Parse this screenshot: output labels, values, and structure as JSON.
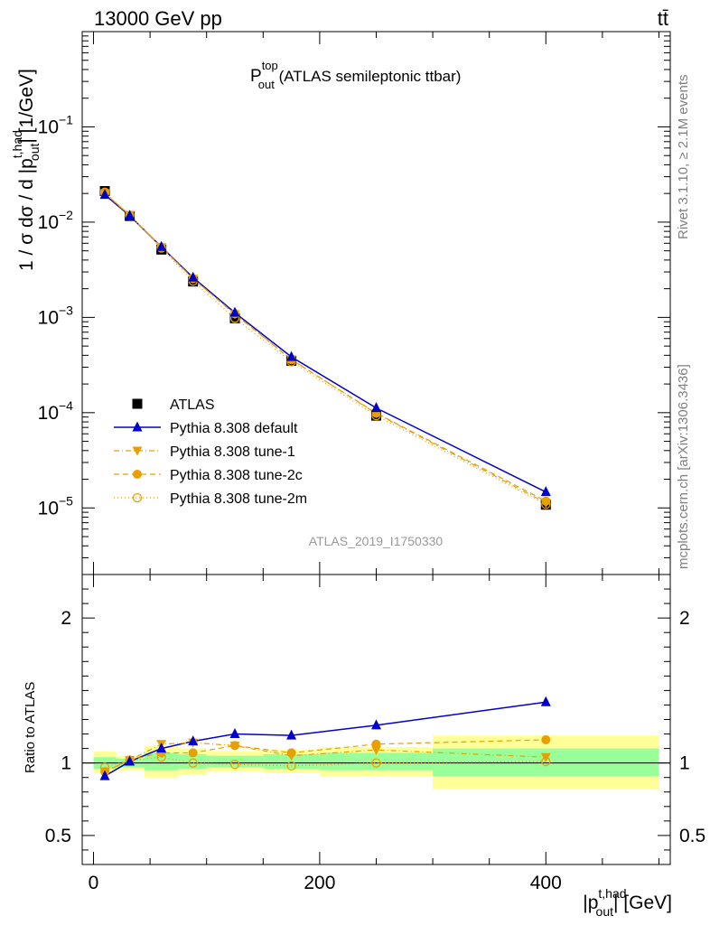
{
  "header": {
    "left": "13000 GeV pp",
    "right": "tt̄"
  },
  "side_labels": {
    "rivet": "Rivet 3.1.10, ≥ 2.1M events",
    "mcplots": "mcplots.cern.ch [arXiv:1306.3436]"
  },
  "analysis_id": "ATLAS_2019_I1750330",
  "plot_title": {
    "main": "P",
    "sup": "top",
    "sub": "out",
    "rest": " (ATLAS semileptonic ttbar)"
  },
  "axes": {
    "ylabel_main": {
      "pre": "1 / σ dσ / d |p",
      "sup": "t,had",
      "sub": "out",
      "post": "| [1/GeV]"
    },
    "ylabel_ratio": "Ratio to ATLAS",
    "xlabel": {
      "pre": "|p",
      "sup": "t,had",
      "sub": "out",
      "post": "| [GeV]"
    }
  },
  "colors": {
    "data": "#000000",
    "default": "#0000cc",
    "tunes": "#e8a000",
    "band_inner": "#99ff99",
    "band_outer": "#ffff99"
  },
  "chart_data": [
    {
      "type": "scatter",
      "panel": "main",
      "ylog": true,
      "xlim": [
        -10,
        510
      ],
      "ylim": [
        2e-06,
        1
      ],
      "x_ticks": [
        0,
        200,
        400
      ],
      "y_ticks": [
        {
          "value": 0.1,
          "base": "10",
          "exp": "−1"
        },
        {
          "value": 0.01,
          "base": "10",
          "exp": "−2"
        },
        {
          "value": 0.001,
          "base": "10",
          "exp": "−3"
        },
        {
          "value": 0.0001,
          "base": "10",
          "exp": "−4"
        },
        {
          "value": 1e-05,
          "base": "10",
          "exp": "−5"
        }
      ],
      "x": [
        10,
        32,
        60,
        88,
        125,
        175,
        250,
        400
      ],
      "series": [
        {
          "name": "ATLAS",
          "style": "data",
          "values": [
            0.0212,
            0.0116,
            0.00515,
            0.00238,
            0.00098,
            0.00035,
            9.3e-05,
            1.08e-05
          ]
        },
        {
          "name": "Pythia 8.308 default",
          "style": "default",
          "values": [
            0.0194,
            0.0117,
            0.0055,
            0.00262,
            0.00112,
            0.000385,
            0.000112,
            1.47e-05
          ]
        },
        {
          "name": "Pythia 8.308 tune-1",
          "style": "tune1",
          "values": [
            0.0201,
            0.0119,
            0.00545,
            0.00255,
            0.00108,
            0.000362,
            9.8e-05,
            1.13e-05
          ]
        },
        {
          "name": "Pythia 8.308 tune-2c",
          "style": "tune2c",
          "values": [
            0.0201,
            0.0118,
            0.0055,
            0.00255,
            0.00109,
            0.00036,
            9.9e-05,
            1.18e-05
          ]
        },
        {
          "name": "Pythia 8.308 tune-2m",
          "style": "tune2m",
          "values": [
            0.0206,
            0.0118,
            0.00535,
            0.0024,
            0.00098,
            0.000342,
            9.3e-05,
            1.09e-05
          ]
        }
      ]
    },
    {
      "type": "scatter",
      "panel": "ratio",
      "xlim": [
        -10,
        510
      ],
      "ylim": [
        0.3,
        2.3
      ],
      "x_ticks": [
        0,
        200,
        400
      ],
      "y_ticks": [
        0.5,
        1,
        2
      ],
      "reference_line": 1,
      "bands": [
        {
          "x0": 0,
          "x1": 20,
          "inner": [
            0.96,
            1.04
          ],
          "outer": [
            0.93,
            1.08
          ]
        },
        {
          "x0": 20,
          "x1": 45,
          "inner": [
            0.97,
            1.03
          ],
          "outer": [
            0.95,
            1.05
          ]
        },
        {
          "x0": 45,
          "x1": 75,
          "inner": [
            0.95,
            1.07
          ],
          "outer": [
            0.9,
            1.12
          ]
        },
        {
          "x0": 75,
          "x1": 100,
          "inner": [
            0.96,
            1.06
          ],
          "outer": [
            0.92,
            1.1
          ]
        },
        {
          "x0": 100,
          "x1": 150,
          "inner": [
            0.97,
            1.05
          ],
          "outer": [
            0.94,
            1.08
          ]
        },
        {
          "x0": 150,
          "x1": 200,
          "inner": [
            0.96,
            1.06
          ],
          "outer": [
            0.93,
            1.09
          ]
        },
        {
          "x0": 200,
          "x1": 300,
          "inner": [
            0.95,
            1.07
          ],
          "outer": [
            0.91,
            1.11
          ]
        },
        {
          "x0": 300,
          "x1": 500,
          "inner": [
            0.91,
            1.1
          ],
          "outer": [
            0.82,
            1.19
          ]
        }
      ],
      "x": [
        10,
        32,
        60,
        88,
        125,
        175,
        250,
        400
      ],
      "series": [
        {
          "name": "Pythia 8.308 default",
          "style": "default",
          "values": [
            0.91,
            1.01,
            1.1,
            1.15,
            1.2,
            1.19,
            1.26,
            1.42
          ]
        },
        {
          "name": "Pythia 8.308 tune-1",
          "style": "tune1",
          "values": [
            0.94,
            1.02,
            1.13,
            1.14,
            1.12,
            1.05,
            1.09,
            1.04
          ]
        },
        {
          "name": "Pythia 8.308 tune-2c",
          "style": "tune2c",
          "values": [
            0.94,
            1.02,
            1.07,
            1.07,
            1.12,
            1.07,
            1.13,
            1.16
          ]
        },
        {
          "name": "Pythia 8.308 tune-2m",
          "style": "tune2m",
          "values": [
            0.97,
            1.02,
            1.04,
            1.0,
            0.99,
            0.98,
            1.0,
            1.01
          ]
        }
      ]
    }
  ]
}
